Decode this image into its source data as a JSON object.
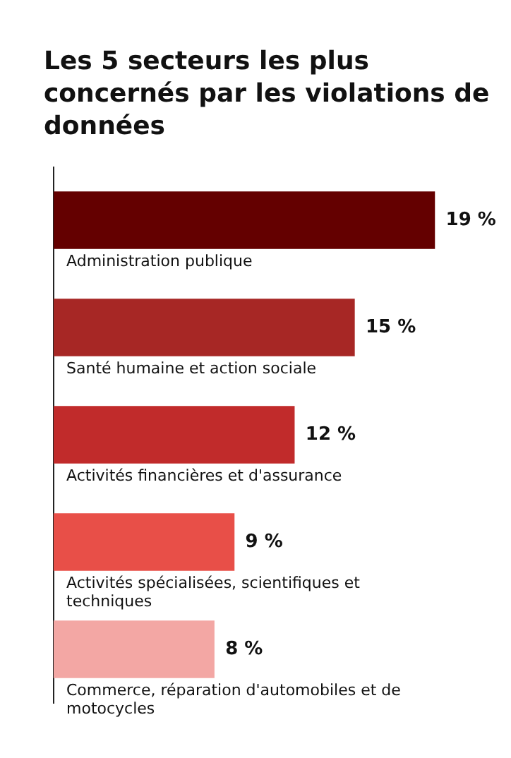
{
  "chart_data": {
    "type": "bar",
    "orientation": "horizontal",
    "title": "Les 5 secteurs les plus concernés par les violations de données",
    "categories": [
      "Administration publique",
      "Santé humaine et action sociale",
      "Activités financières et d'assurance",
      "Activités spécialisées, scientifiques et techniques",
      "Commerce, réparation d'automobiles et de motocycles"
    ],
    "values": [
      19,
      15,
      12,
      9,
      8
    ],
    "colors": [
      "#640000",
      "#a72725",
      "#c12b2b",
      "#e84f48",
      "#f3a7a4"
    ],
    "value_labels": [
      "19 %",
      "15 %",
      "12 %",
      "9 %",
      "8 %"
    ],
    "grid": false,
    "legend": false,
    "tick_labels": false
  }
}
